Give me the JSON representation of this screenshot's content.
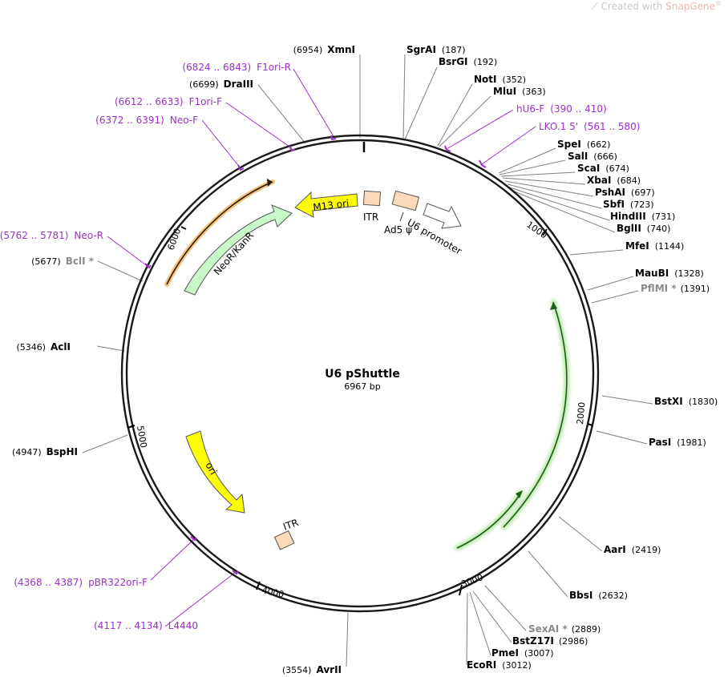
{
  "watermark": {
    "prefix": "Created with ",
    "brand": "SnapGene",
    "mark": "®"
  },
  "plasmid": {
    "name": "U6 pShuttle",
    "size_label": "6967 bp",
    "length": 6967
  },
  "ticks": [
    "1000",
    "2000",
    "3000",
    "4000",
    "5000",
    "6000"
  ],
  "colors": {
    "backbone": "#1a1a1a",
    "primer": "#9b30c8",
    "m13": "#ffff00",
    "neo": "#c8f7c8",
    "ori": "#ffff00",
    "itr": "#fcd9b8",
    "orange_arc": "#e8a040",
    "green_arc": "#3a8a2a"
  },
  "enzymes": [
    {
      "name": "XmnI",
      "pos": "(6954)",
      "grey": false
    },
    {
      "name": "SgrAI",
      "pos": "(187)",
      "grey": false
    },
    {
      "name": "BsrGI",
      "pos": "(192)",
      "grey": false
    },
    {
      "name": "NotI",
      "pos": "(352)",
      "grey": false
    },
    {
      "name": "MluI",
      "pos": "(363)",
      "grey": false
    },
    {
      "name": "SpeI",
      "pos": "(662)",
      "grey": false
    },
    {
      "name": "SalI",
      "pos": "(666)",
      "grey": false
    },
    {
      "name": "ScaI",
      "pos": "(674)",
      "grey": false
    },
    {
      "name": "XbaI",
      "pos": "(684)",
      "grey": false
    },
    {
      "name": "PshAI",
      "pos": "(697)",
      "grey": false
    },
    {
      "name": "SbfI",
      "pos": "(723)",
      "grey": false
    },
    {
      "name": "HindIII",
      "pos": "(731)",
      "grey": false
    },
    {
      "name": "BglII",
      "pos": "(740)",
      "grey": false
    },
    {
      "name": "MfeI",
      "pos": "(1144)",
      "grey": false
    },
    {
      "name": "MauBI",
      "pos": "(1328)",
      "grey": false
    },
    {
      "name": "PflMI *",
      "pos": "(1391)",
      "grey": true
    },
    {
      "name": "BstXI",
      "pos": "(1830)",
      "grey": false
    },
    {
      "name": "PasI",
      "pos": "(1981)",
      "grey": false
    },
    {
      "name": "AarI",
      "pos": "(2419)",
      "grey": false
    },
    {
      "name": "BbsI",
      "pos": "(2632)",
      "grey": false
    },
    {
      "name": "SexAI *",
      "pos": "(2889)",
      "grey": true
    },
    {
      "name": "BstZ17I",
      "pos": "(2986)",
      "grey": false
    },
    {
      "name": "PmeI",
      "pos": "(3007)",
      "grey": false
    },
    {
      "name": "EcoRI",
      "pos": "(3012)",
      "grey": false
    },
    {
      "name": "AvrII",
      "pos": "(3554)",
      "grey": false
    },
    {
      "name": "BspHI",
      "pos": "(4947)",
      "grey": false
    },
    {
      "name": "AclI",
      "pos": "(5346)",
      "grey": false
    },
    {
      "name": "BclI *",
      "pos": "(5677)",
      "grey": true
    },
    {
      "name": "DraIII",
      "pos": "(6699)",
      "grey": false
    }
  ],
  "primers": [
    {
      "name": "F1ori-R",
      "range": "(6824 .. 6843)"
    },
    {
      "name": "F1ori-F",
      "range": "(6612 .. 6633)"
    },
    {
      "name": "Neo-F",
      "range": "(6372 .. 6391)"
    },
    {
      "name": "hU6-F",
      "range": "(390 .. 410)"
    },
    {
      "name": "LKO.1 5'",
      "range": "(561 .. 580)"
    },
    {
      "name": "Neo-R",
      "range": "(5762 .. 5781)"
    },
    {
      "name": "pBR322ori-F",
      "range": "(4368 .. 4387)"
    },
    {
      "name": "L4440",
      "range": "(4117 .. 4134)"
    }
  ],
  "features": {
    "m13": "M13 ori",
    "neo": "NeoR/KanR",
    "ori": "ori",
    "itr_top": "ITR",
    "itr_bottom": "ITR",
    "ad5": "Ad5 ψ",
    "u6": "U6 promoter"
  }
}
